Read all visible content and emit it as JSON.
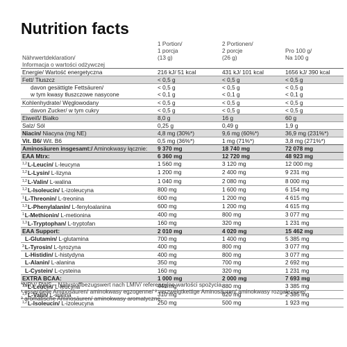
{
  "title": "Nutrition facts",
  "header": {
    "label": [
      "Nährwertdeklaration/",
      "Informacja o wartości odżywczej"
    ],
    "columns": [
      [
        "1 Portion/",
        "1 porcja",
        "(13 g)"
      ],
      [
        "2 Portionen/",
        "2 porcje",
        "(26 g)"
      ],
      [
        "Pro 100 g/",
        "Na 100 g"
      ]
    ]
  },
  "nutrients": [
    {
      "label": [
        "Energie/ Wartość energetyczna"
      ],
      "values": [
        [
          "216 kJ/ 51 kcal"
        ],
        [
          "431 kJ/ 101 kcal"
        ],
        [
          "1656 kJ/ 390 kcal"
        ]
      ]
    },
    {
      "label": [
        "Fett/ Tłuszcz"
      ],
      "values": [
        [
          "< 0,5 g"
        ],
        [
          "< 0,5 g"
        ],
        [
          "< 0,5 g"
        ]
      ]
    },
    {
      "label": [
        "davon gesättigte Fettsäuren/",
        "w tym kwasy tłuszczowe nasycone"
      ],
      "values": [
        [
          "< 0,5 g",
          "< 0,1 g"
        ],
        [
          "< 0,5 g",
          "< 0,1 g"
        ],
        [
          "< 0,5 g",
          "< 0,1 g"
        ]
      ]
    },
    {
      "label": [
        "Kohlenhydrate/ Węglowodany"
      ],
      "values": [
        [
          "< 0,5 g"
        ],
        [
          "< 0,5 g"
        ],
        [
          "< 0,5 g"
        ]
      ]
    },
    {
      "label": [
        "davon Zucker/ w tym cukry"
      ],
      "values": [
        [
          "< 0,5 g"
        ],
        [
          "< 0,5 g"
        ],
        [
          "< 0,5 g"
        ]
      ]
    },
    {
      "label": [
        "Eiweiß/ Białko"
      ],
      "values": [
        [
          "8,0 g"
        ],
        [
          "16 g"
        ],
        [
          "60 g"
        ]
      ]
    },
    {
      "label": [
        "Salz/ Sól"
      ],
      "values": [
        [
          "0,25 g"
        ],
        [
          "0,49 g"
        ],
        [
          "1,9 g"
        ]
      ]
    }
  ],
  "vitamins": [
    {
      "name": "Niacin/",
      "alt": " Niacyna (mg NE)",
      "values": [
        "4,8 mg (30%*)",
        "9,6 mg (60%*)",
        "36,9 mg (231%*)"
      ]
    },
    {
      "name": "Vit. B6/",
      "alt": " Wit. B6",
      "values": [
        "0,5 mg (36%*)",
        "1 mg (71%*)",
        "3,8 mg (271%*)"
      ]
    }
  ],
  "amino_total": {
    "name": "Aminosäuren insgesamt:/",
    "alt": " Aminokwasy łącznie:",
    "values": [
      "9 370 mg",
      "18 740 mg",
      "72 078 mg"
    ]
  },
  "groups": [
    {
      "name": "EAA Mtrx:",
      "values": [
        "6 360 mg",
        "12 720 mg",
        "48 923 mg"
      ],
      "items": [
        {
          "sup": "1,2",
          "name": "L-Leucin/",
          "alt": " L-leucyna",
          "values": [
            "1 560 mg",
            "3 120 mg",
            "12 000 mg"
          ]
        },
        {
          "sup": "1,2",
          "name": "L-Lysin/",
          "alt": " L-lizyna",
          "values": [
            "1 200 mg",
            "2 400 mg",
            "9 231 mg"
          ]
        },
        {
          "sup": "1,2",
          "name": "L-Valin/",
          "alt": " L-walina",
          "values": [
            "1 040 mg",
            "2 080 mg",
            "8 000 mg"
          ]
        },
        {
          "sup": "1,2",
          "name": "L-Isoleucin/",
          "alt": " L-izoleucyna",
          "values": [
            "800 mg",
            "1 600 mg",
            "6 154 mg"
          ]
        },
        {
          "sup": "1",
          "name": "L-Threonin/",
          "alt": " L-treonina",
          "values": [
            "600 mg",
            "1 200 mg",
            "4 615 mg"
          ]
        },
        {
          "sup": "1,3",
          "name": "L-Phenylalanin/",
          "alt": " L-fenyloalanina",
          "values": [
            "600 mg",
            "1 200 mg",
            "4 615 mg"
          ]
        },
        {
          "sup": "1",
          "name": "L-Methionin/",
          "alt": " L-metionina",
          "values": [
            "400 mg",
            "800 mg",
            "3 077 mg"
          ]
        },
        {
          "sup": "1,3",
          "name": "L-Tryptophan/",
          "alt": " L-tryptofan",
          "values": [
            "160 mg",
            "320 mg",
            "1 231 mg"
          ]
        }
      ]
    },
    {
      "name": "EAA Support:",
      "values": [
        "2 010 mg",
        "4 020 mg",
        "15 462 mg"
      ],
      "items": [
        {
          "name": "L-Glutamin/",
          "alt": " L-glutamina",
          "values": [
            "700 mg",
            "1 400 mg",
            "5 385 mg"
          ]
        },
        {
          "sup": "3",
          "name": "L-Tyrosin/",
          "alt": " L-tyrozyna",
          "values": [
            "400 mg",
            "800 mg",
            "3 077 mg"
          ]
        },
        {
          "name": "L-Histidin/",
          "alt": " L-histydyna",
          "values": [
            "400 mg",
            "800 mg",
            "3 077 mg"
          ]
        },
        {
          "name": "L-Alanin/",
          "alt": " L-alanina",
          "values": [
            "350 mg",
            "700 mg",
            "2 692 mg"
          ]
        },
        {
          "name": "L-Cystein/",
          "alt": " L-cysteina",
          "values": [
            "160 mg",
            "320 mg",
            "1 231 mg"
          ]
        }
      ]
    },
    {
      "name": "EXTRA BCAA:",
      "values": [
        "1 000 mg",
        "2 000 mg",
        "7 693 mg"
      ],
      "items": [
        {
          "sup": "1,2",
          "name": "L-Leucin/",
          "alt": " L-leucyna",
          "values": [
            "440 mg",
            "880 mg",
            "3 385 mg"
          ]
        },
        {
          "sup": "1,2",
          "name": "L-Valin/",
          "alt": " L-walina",
          "values": [
            "310 mg",
            "620 mg",
            "2 385 mg"
          ]
        },
        {
          "sup": "1,2",
          "name": "L-Isoleucin/",
          "alt": " L-izoleucyna",
          "values": [
            "250 mg",
            "500 mg",
            "1 923 mg"
          ]
        }
      ]
    }
  ],
  "footnotes": [
    "*NRV/ RWS – Nährstoffbezugswert nach LMIV/ referencyjne wartości spożycia.",
    "¹ essentielle Aminosäuren/ aminokwasy egzogenne/ ² verzweigtkettige Aminosäuren/ aminokwasy rozgałęzione/",
    "³ aromatische Aminosäuren/ aminokwasy aromatyczne."
  ]
}
